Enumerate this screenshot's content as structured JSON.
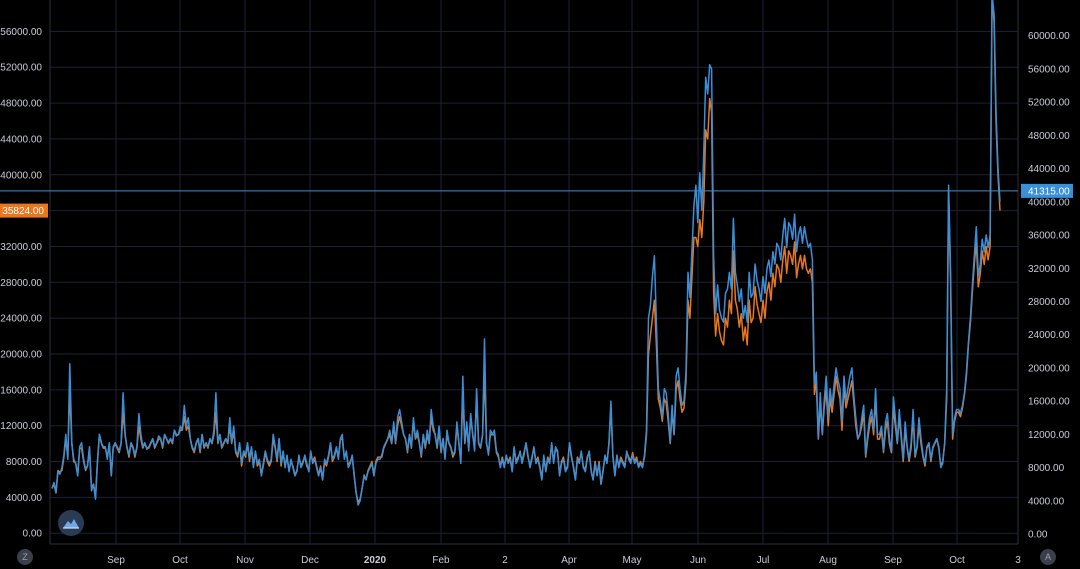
{
  "toolbar": {
    "left_scale_button": "Z",
    "right_scale_button": "A"
  },
  "price_labels": {
    "left_marker": "35824.00",
    "right_marker": "41315.00"
  },
  "colors": {
    "background": "#000000",
    "grid": "#1b2235",
    "blue_series": "#3a8fd9",
    "orange_series": "#e8771f",
    "hline": "#3a8fd9"
  },
  "chart_data": {
    "type": "line",
    "left_axis": {
      "ticks": [
        "0.00",
        "4000.00",
        "8000.00",
        "12000.00",
        "16000.00",
        "20000.00",
        "24000.00",
        "28000.00",
        "32000.00",
        "36000.00",
        "40000.00",
        "44000.00",
        "48000.00",
        "52000.00",
        "56000.00"
      ],
      "ylim": [
        -1200,
        59500
      ]
    },
    "right_axis": {
      "ticks": [
        "0.00",
        "4000.00",
        "8000.00",
        "12000.00",
        "16000.00",
        "20000.00",
        "24000.00",
        "28000.00",
        "32000.00",
        "36000.00",
        "40000.00",
        "44000.00",
        "48000.00",
        "52000.00",
        "56000.00",
        "60000.00"
      ],
      "ylim": [
        -1200,
        64300
      ]
    },
    "x_ticks": [
      {
        "label": "Sep",
        "bold": false
      },
      {
        "label": "Oct",
        "bold": false
      },
      {
        "label": "Nov",
        "bold": false
      },
      {
        "label": "Dec",
        "bold": false
      },
      {
        "label": "2020",
        "bold": true
      },
      {
        "label": "Feb",
        "bold": false
      },
      {
        "label": "2",
        "bold": false
      },
      {
        "label": "Apr",
        "bold": false
      },
      {
        "label": "May",
        "bold": false
      },
      {
        "label": "Jun",
        "bold": false
      },
      {
        "label": "Jul",
        "bold": false
      },
      {
        "label": "Aug",
        "bold": false
      },
      {
        "label": "Sep",
        "bold": false
      },
      {
        "label": "Oct",
        "bold": false
      },
      {
        "label": "3",
        "bold": false
      }
    ],
    "horizontal_line": {
      "value": 41315,
      "axis": "right"
    },
    "series": [
      {
        "axis": "right",
        "color": "#3a8fd9",
        "values": [
          5500,
          6200,
          5000,
          7500,
          7200,
          8000,
          9500,
          12000,
          9000,
          20500,
          11000,
          9000,
          8500,
          7000,
          10500,
          11000,
          9000,
          7800,
          8200,
          10500,
          5200,
          6000,
          4200,
          8500,
          12000,
          11000,
          10500,
          10500,
          9000,
          11000,
          7000,
          10500,
          11000,
          10500,
          10000,
          11000,
          17000,
          12000,
          10500,
          9500,
          11000,
          10500,
          9500,
          10500,
          14500,
          12000,
          10500,
          11000,
          10200,
          10500,
          11000,
          11500,
          10500,
          11000,
          11800,
          11500,
          10500,
          12000,
          11500,
          11000,
          11500,
          11000,
          12500,
          11800,
          12000,
          13000,
          12500,
          15500,
          13000,
          14000,
          11500,
          10500,
          10000,
          11000,
          11500,
          10000,
          12000,
          10500,
          11000,
          10500,
          11500,
          11000,
          12500,
          17000,
          11000,
          12000,
          10500,
          11000,
          11500,
          11000,
          14000,
          11000,
          13000,
          10000,
          9500,
          11000,
          8500,
          10000,
          9500,
          11000,
          9000,
          10500,
          8000,
          10000,
          8500,
          9000,
          7000,
          8500,
          10000,
          9000,
          8500,
          9000,
          12000,
          10500,
          9000,
          11500,
          8500,
          10000,
          8000,
          9500,
          7500,
          9000,
          8000,
          7000,
          7500,
          9500,
          8000,
          8500,
          9500,
          8500,
          7500,
          10000,
          8500,
          9000,
          8000,
          7000,
          8000,
          6500,
          9000,
          8500,
          9500,
          11000,
          9000,
          9500,
          10500,
          9000,
          11500,
          12000,
          9000,
          10000,
          8000,
          8500,
          9500,
          7000,
          5000,
          3500,
          4000,
          5500,
          7000,
          6500,
          7500,
          8000,
          8500,
          7000,
          8500,
          9000,
          9000,
          9500,
          10500,
          11000,
          11500,
          12500,
          11000,
          13500,
          11000,
          14000,
          15000,
          13500,
          12000,
          11500,
          10000,
          12000,
          10500,
          14000,
          11500,
          12500,
          11000,
          9500,
          12000,
          10500,
          12500,
          11000,
          15000,
          13000,
          12000,
          10500,
          13000,
          10000,
          11500,
          9000,
          12500,
          11000,
          10500,
          9500,
          10000,
          13500,
          11000,
          8500,
          19000,
          11000,
          13500,
          10000,
          14500,
          12000,
          10000,
          17500,
          11000,
          10500,
          12000,
          23500,
          11000,
          9500,
          12500,
          12000,
          12500,
          10000,
          9500,
          8000,
          9000,
          8000,
          9500,
          8500,
          9000,
          7500,
          10500,
          8500,
          9000,
          10000,
          8500,
          9500,
          11000,
          9500,
          8000,
          9000,
          10500,
          8500,
          9000,
          8000,
          6500,
          9500,
          7500,
          9000,
          8500,
          11000,
          8500,
          10500,
          10000,
          7000,
          8500,
          9000,
          7500,
          8000,
          11000,
          9500,
          8000,
          6500,
          9000,
          8500,
          10000,
          8000,
          7500,
          9000,
          10000,
          7500,
          6500,
          8500,
          7000,
          8500,
          6000,
          7500,
          9500,
          8500,
          11000,
          16000,
          9500,
          7000,
          9500,
          8000,
          9000,
          8500,
          8000,
          10000,
          9000,
          8500,
          9500,
          8500,
          9000,
          8000,
          8500,
          8000,
          9500,
          12500,
          26000,
          27500,
          31000,
          33500,
          25500,
          17500,
          16000,
          14000,
          17500,
          17000,
          14500,
          11000,
          15500,
          12000,
          19000,
          20000,
          17500,
          15500,
          16000,
          19500,
          31500,
          28500,
          34000,
          39500,
          42000,
          37500,
          43500,
          39000,
          46000,
          55000,
          53000,
          56500,
          56000,
          33500,
          26500,
          30000,
          27000,
          26000,
          25500,
          29000,
          29500,
          31500,
          29500,
          38000,
          31500,
          30000,
          28000,
          29500,
          26000,
          27500,
          25500,
          31500,
          28500,
          29000,
          32500,
          30500,
          29500,
          28000,
          31000,
          29000,
          32000,
          33000,
          31000,
          34000,
          32500,
          35000,
          34500,
          33000,
          36000,
          38000,
          34500,
          37500,
          37000,
          35500,
          38500,
          34000,
          36000,
          37000,
          35000,
          37000,
          35500,
          34500,
          35000,
          33000,
          18000,
          19500,
          11500,
          17000,
          12000,
          16000,
          19000,
          14000,
          17500,
          15500,
          18000,
          20000,
          18500,
          17500,
          13500,
          19000,
          16000,
          17500,
          19000,
          20000,
          16500,
          14000,
          11500,
          12000,
          14000,
          15500,
          9500,
          12000,
          14000,
          15000,
          12500,
          17500,
          12000,
          12000,
          13000,
          10000,
          13500,
          14500,
          11500,
          10000,
          16500,
          14000,
          11000,
          15000,
          12000,
          9000,
          13500,
          10500,
          9000,
          11000,
          15000,
          9500,
          10500,
          14000,
          11500,
          9500,
          8500,
          10500,
          11000,
          9000,
          10500,
          11000,
          11500,
          10500,
          8000,
          8500,
          11000,
          17500,
          42000,
          31500,
          12000,
          14000,
          15000,
          15000,
          14500,
          15500,
          17000,
          19500,
          23000,
          26000,
          30000,
          33500,
          37000,
          31000,
          32500,
          35500,
          34000,
          36000,
          34500,
          36000,
          65000,
          62500,
          51000,
          44000,
          40000
        ]
      },
      {
        "axis": "left",
        "color": "#e8771f",
        "values": [
          5000,
          5500,
          4500,
          7000,
          6800,
          7000,
          8500,
          10500,
          8500,
          16000,
          10000,
          8000,
          7800,
          6500,
          9500,
          9500,
          8000,
          7000,
          7500,
          9500,
          5000,
          5500,
          4000,
          8000,
          11000,
          10000,
          9500,
          9500,
          8500,
          10000,
          6500,
          9500,
          10000,
          9500,
          9000,
          10000,
          13500,
          11000,
          9500,
          8500,
          10000,
          9500,
          8500,
          9500,
          12000,
          10500,
          9500,
          10000,
          9500,
          9500,
          10000,
          10500,
          9500,
          10000,
          10500,
          10500,
          9500,
          11000,
          10500,
          10000,
          10500,
          10000,
          11500,
          11000,
          11000,
          11500,
          11500,
          13000,
          11500,
          12000,
          10500,
          9500,
          9000,
          10000,
          10500,
          9000,
          11000,
          9500,
          10000,
          9500,
          10500,
          10000,
          11000,
          13500,
          10000,
          11000,
          9500,
          10000,
          10500,
          10000,
          12000,
          10000,
          11500,
          9000,
          8500,
          10000,
          7500,
          9000,
          8500,
          10000,
          8000,
          9500,
          7500,
          9000,
          7500,
          8000,
          6500,
          7500,
          9000,
          8000,
          7500,
          8000,
          10500,
          9500,
          8000,
          10500,
          7500,
          9000,
          7500,
          8500,
          7000,
          8000,
          7500,
          6500,
          7000,
          8500,
          7500,
          8000,
          8500,
          7500,
          7000,
          9000,
          8000,
          8500,
          7500,
          6500,
          7500,
          6000,
          8000,
          7500,
          8500,
          10000,
          8000,
          8500,
          9500,
          8500,
          10500,
          10500,
          8500,
          9000,
          7500,
          8000,
          8500,
          6500,
          4500,
          3500,
          3800,
          5000,
          6500,
          6000,
          7000,
          7500,
          8000,
          6500,
          8000,
          8500,
          8500,
          8500,
          9500,
          10000,
          10500,
          11000,
          10000,
          12000,
          10000,
          12000,
          13000,
          12000,
          11000,
          10500,
          9000,
          11000,
          9500,
          12500,
          10500,
          11000,
          10000,
          8500,
          11000,
          9500,
          11000,
          10000,
          13000,
          11500,
          11000,
          9500,
          11500,
          9000,
          10500,
          8500,
          11000,
          10000,
          9500,
          8500,
          9000,
          12000,
          10000,
          8000,
          15500,
          10000,
          12000,
          9500,
          13000,
          11000,
          9500,
          15000,
          10000,
          9500,
          11000,
          18000,
          10000,
          9000,
          11000,
          11000,
          11000,
          9000,
          8500,
          7500,
          8500,
          7500,
          8500,
          8000,
          8500,
          7000,
          9500,
          8000,
          8500,
          9000,
          8000,
          9000,
          10000,
          8500,
          7500,
          8500,
          9500,
          8000,
          8500,
          7500,
          6000,
          8500,
          7000,
          8500,
          8000,
          10000,
          8000,
          9500,
          9000,
          6500,
          8000,
          8500,
          7000,
          7500,
          10000,
          8500,
          7500,
          6000,
          8500,
          8000,
          9000,
          7500,
          7000,
          8500,
          9000,
          7000,
          6000,
          8000,
          6500,
          8000,
          5500,
          7000,
          8500,
          8000,
          10000,
          14000,
          8500,
          6500,
          8500,
          7500,
          8500,
          8000,
          7500,
          9000,
          8500,
          8000,
          9000,
          8000,
          8500,
          7500,
          8000,
          7500,
          8500,
          11000,
          20000,
          22000,
          24000,
          26000,
          21000,
          15000,
          14000,
          12500,
          15000,
          14500,
          12500,
          10000,
          13500,
          11000,
          16000,
          17000,
          15000,
          13500,
          14000,
          17000,
          26000,
          24000,
          28500,
          33000,
          33000,
          32000,
          35000,
          33000,
          37000,
          45000,
          44000,
          48500,
          47000,
          27000,
          22000,
          24500,
          22500,
          21500,
          21000,
          24000,
          23000,
          26000,
          24500,
          31500,
          26000,
          25000,
          23000,
          24500,
          21500,
          23000,
          21000,
          26000,
          23500,
          24000,
          27500,
          25500,
          24500,
          23500,
          26000,
          24000,
          27000,
          28000,
          26000,
          29000,
          27500,
          30000,
          29500,
          28000,
          30500,
          32000,
          29000,
          31500,
          31000,
          30000,
          32500,
          28500,
          30000,
          31000,
          29500,
          31000,
          29500,
          29000,
          29500,
          28000,
          15500,
          17000,
          10500,
          14500,
          11000,
          14000,
          16000,
          12000,
          15000,
          13500,
          15500,
          17500,
          16000,
          15000,
          11500,
          16500,
          14000,
          15000,
          16000,
          17000,
          14500,
          12000,
          10500,
          11000,
          12000,
          13500,
          8500,
          10500,
          12000,
          13000,
          11000,
          15000,
          10500,
          10500,
          11500,
          9000,
          11500,
          12500,
          10000,
          9000,
          14000,
          12000,
          10000,
          13000,
          10500,
          8000,
          11500,
          9500,
          8000,
          9500,
          13000,
          8500,
          9500,
          12000,
          10000,
          8500,
          7500,
          9500,
          10000,
          8000,
          9500,
          10000,
          10500,
          9500,
          7500,
          8000,
          10000,
          15000,
          38000,
          28000,
          10500,
          12500,
          13500,
          13500,
          13000,
          14000,
          15500,
          17500,
          21000,
          23500,
          27000,
          30000,
          32500,
          27500,
          29000,
          31500,
          30000,
          32000,
          30500,
          32000,
          60000,
          57000,
          46000,
          40000,
          36000
        ]
      }
    ]
  }
}
